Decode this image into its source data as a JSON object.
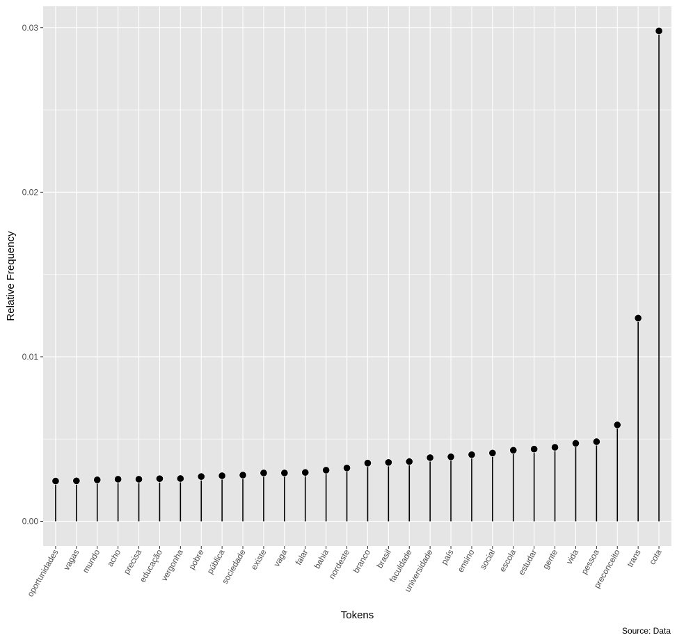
{
  "colors": {
    "panel_background": "#e5e5e5",
    "grid_line": "#ffffff",
    "point": "#000000",
    "segment": "#000000",
    "tick_text": "#4d4d4d",
    "tick_mark": "#333333"
  },
  "chart_data": {
    "type": "lollipop",
    "title": "",
    "xlabel": "Tokens",
    "ylabel": "Relative Frequency",
    "caption": "Source: Data",
    "ylim": [
      -0.0015,
      0.0313
    ],
    "yticks": [
      0.0,
      0.01,
      0.02,
      0.03
    ],
    "ytick_labels": [
      "0.00",
      "0.01",
      "0.02",
      "0.03"
    ],
    "grid": true,
    "legend": "none",
    "categories": [
      "oportunidades",
      "vagas",
      "mundo",
      "acho",
      "precisa",
      "educação",
      "vergonha",
      "pobre",
      "pública",
      "sociedade",
      "existe",
      "vaga",
      "falar",
      "bahia",
      "nordeste",
      "branco",
      "brasil",
      "faculdade",
      "universidade",
      "país",
      "ensino",
      "social",
      "escola",
      "estudar",
      "gente",
      "vida",
      "pessoa",
      "preconceito",
      "trans",
      "cota"
    ],
    "values": [
      0.00245,
      0.00246,
      0.00252,
      0.00256,
      0.00256,
      0.00259,
      0.0026,
      0.00272,
      0.00277,
      0.00281,
      0.00294,
      0.00294,
      0.00297,
      0.00311,
      0.00324,
      0.00354,
      0.00358,
      0.00363,
      0.00387,
      0.00392,
      0.00405,
      0.00415,
      0.00432,
      0.00439,
      0.0045,
      0.00474,
      0.00484,
      0.00586,
      0.01235,
      0.0298
    ]
  }
}
